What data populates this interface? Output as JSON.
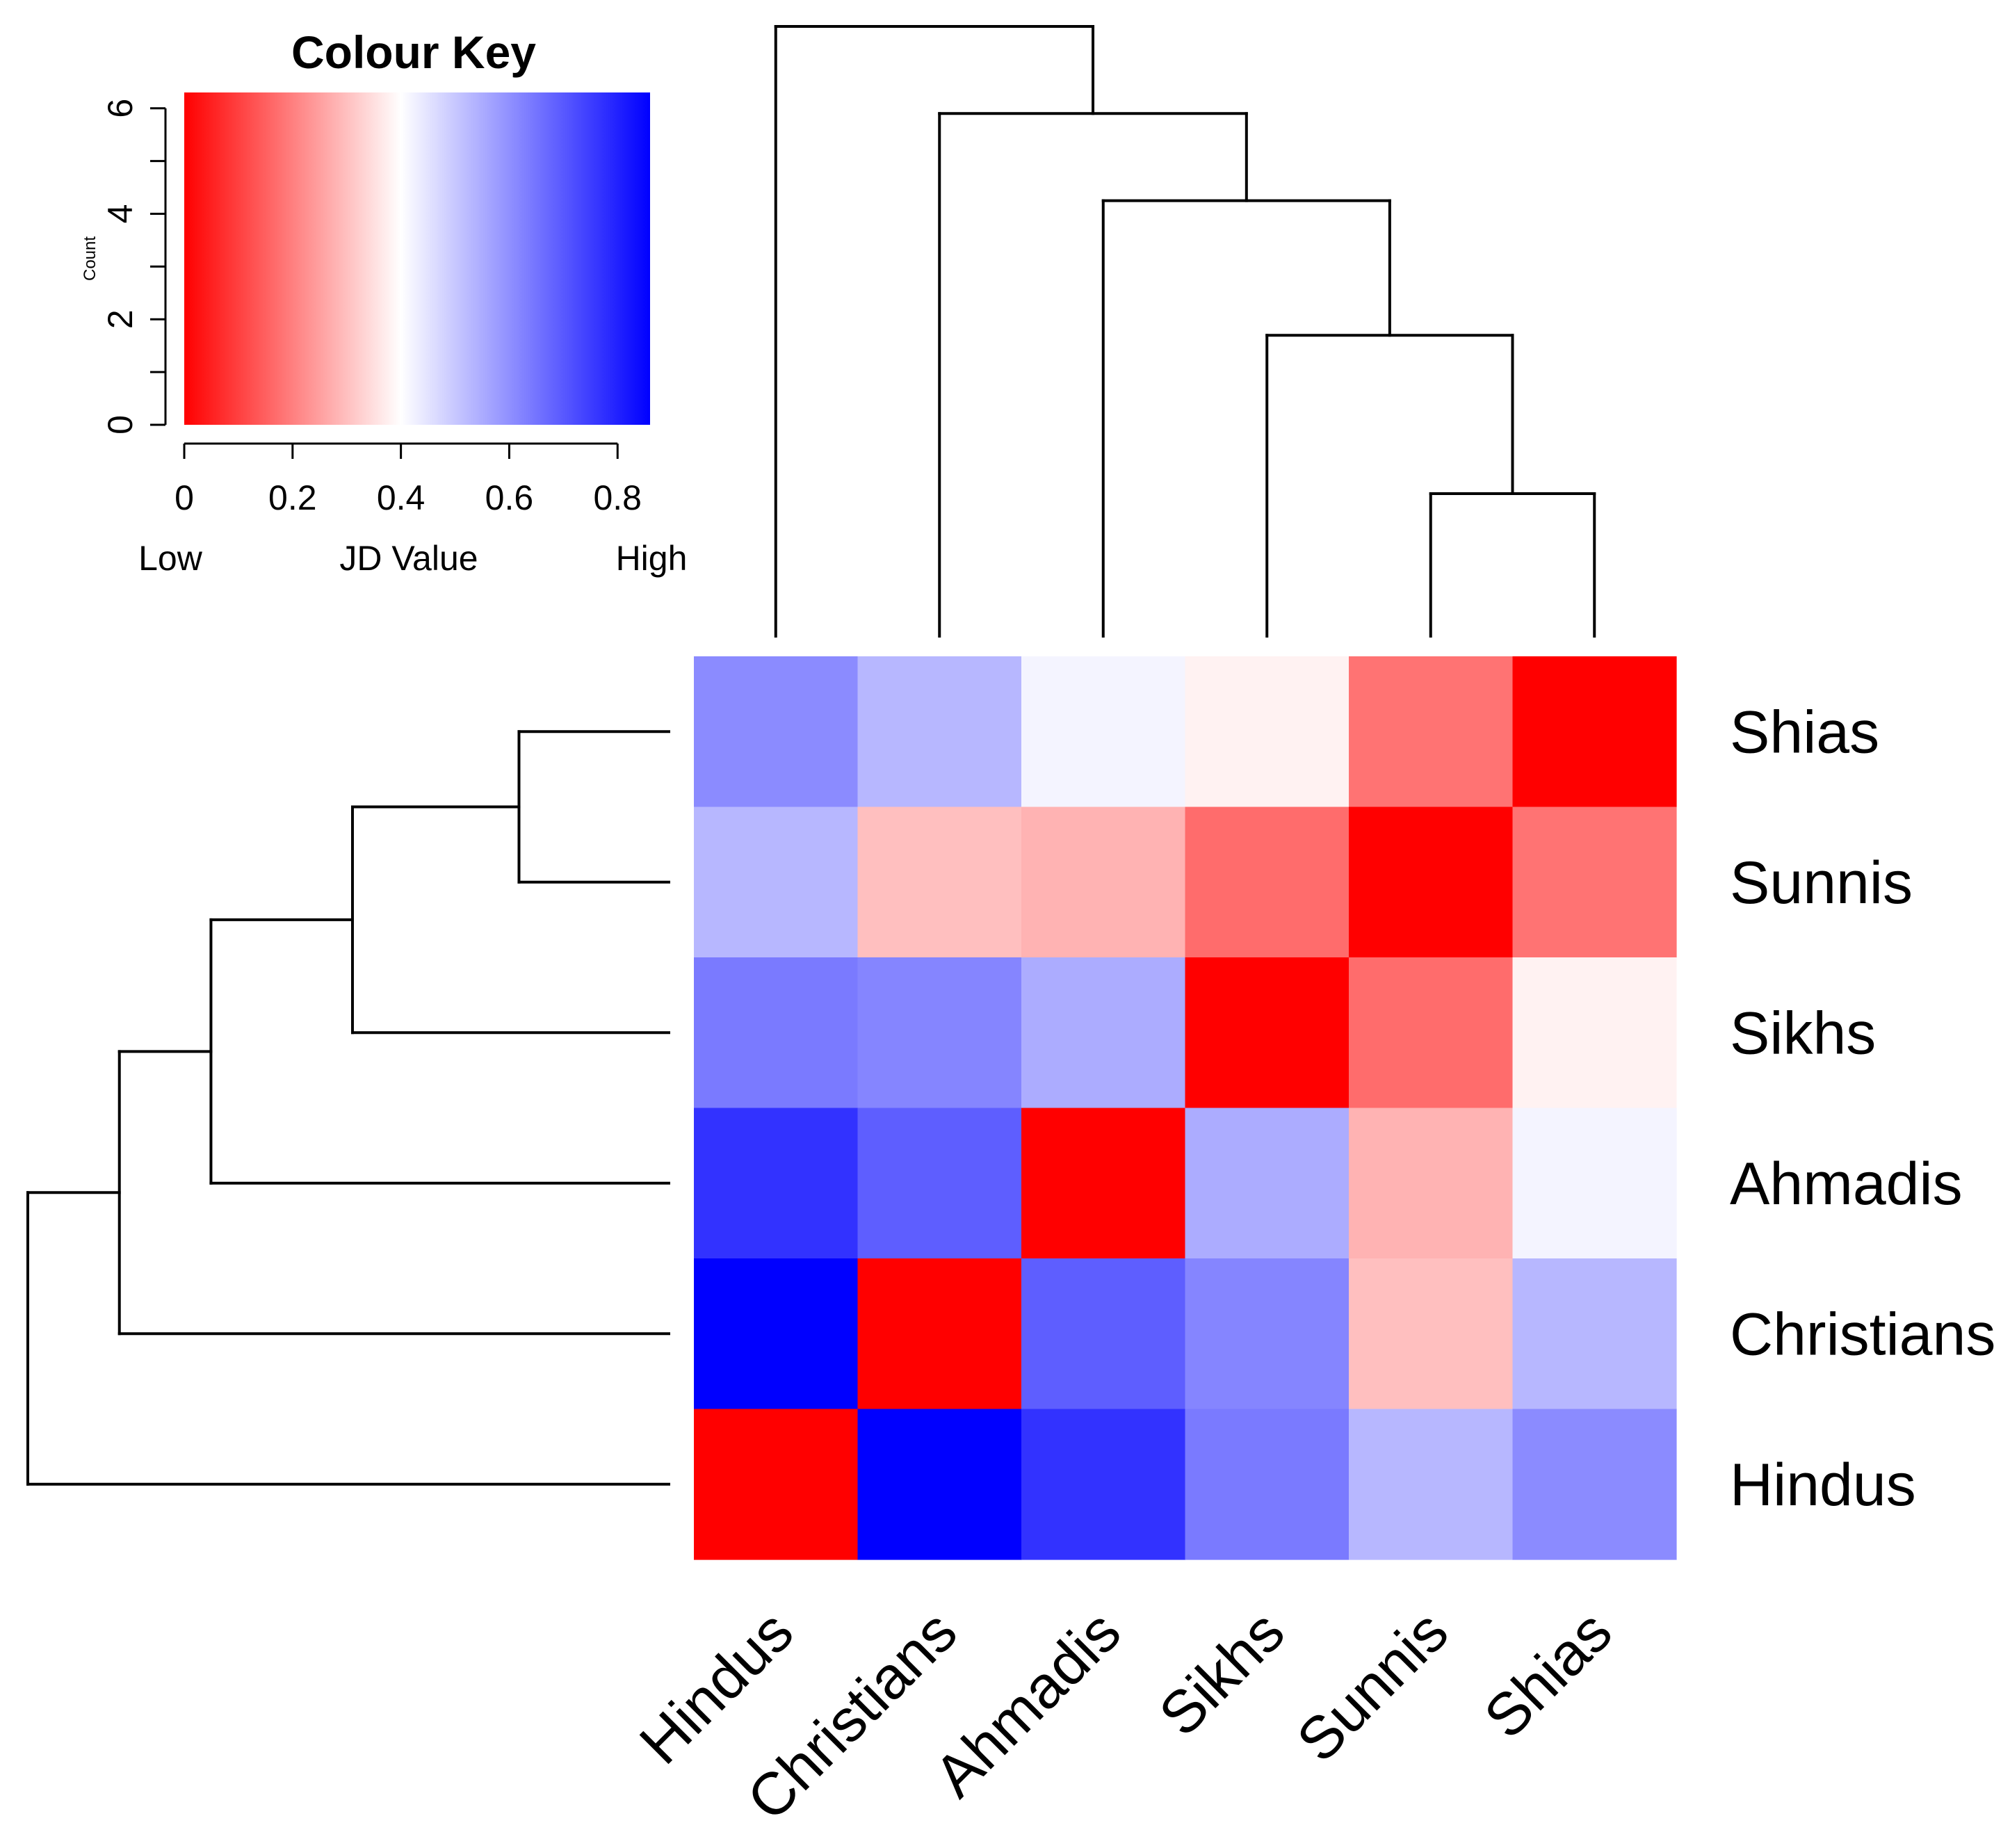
{
  "chart_data": {
    "type": "heatmap",
    "columns": [
      "Hindus",
      "Christians",
      "Ahmadis",
      "Sikhs",
      "Sunnis",
      "Shias"
    ],
    "rows": [
      "Shias",
      "Sunnis",
      "Sikhs",
      "Ahmadis",
      "Christians",
      "Hindus"
    ],
    "values": [
      [
        0.61,
        0.53,
        0.42,
        0.38,
        0.18,
        0.0
      ],
      [
        0.53,
        0.3,
        0.28,
        0.17,
        0.0,
        0.18
      ],
      [
        0.64,
        0.62,
        0.55,
        0.0,
        0.17,
        0.38
      ],
      [
        0.77,
        0.69,
        0.0,
        0.55,
        0.28,
        0.42
      ],
      [
        0.86,
        0.0,
        0.69,
        0.62,
        0.3,
        0.53
      ],
      [
        0.0,
        0.86,
        0.77,
        0.64,
        0.53,
        0.61
      ]
    ],
    "value_range": [
      0,
      0.86
    ],
    "colormap": {
      "low": "#ff0000",
      "mid": "#ffffff",
      "high": "#0000ff"
    },
    "color_key": {
      "title": "Colour Key",
      "xlabel": "JD Value",
      "low_label": "Low",
      "high_label": "High",
      "xticks": [
        "0",
        "0.2",
        "0.4",
        "0.6",
        "0.8"
      ],
      "xtick_values": [
        0,
        0.2,
        0.4,
        0.6,
        0.8
      ],
      "ylabel": "Count",
      "yticks": [
        "0",
        "2",
        "4",
        "6"
      ],
      "ytick_values": [
        0,
        2,
        4,
        6
      ],
      "ylim": [
        0,
        6.3
      ]
    },
    "dendrogram": {
      "merges": [
        {
          "a": "Sunnis",
          "b": "Shias",
          "height": 0.18
        },
        {
          "a": "Sikhs",
          "b": "Sunnis+Shias",
          "height": 0.38
        },
        {
          "a": "Ahmadis",
          "b": "Sikhs+Sunnis+Shias",
          "height": 0.55
        },
        {
          "a": "Christians",
          "b": "Ahmadis+Sikhs+Sunnis+Shias",
          "height": 0.66
        },
        {
          "a": "Hindus",
          "b": "Christians+Ahmadis+Sikhs+Sunnis+Shias",
          "height": 0.77
        }
      ]
    }
  }
}
